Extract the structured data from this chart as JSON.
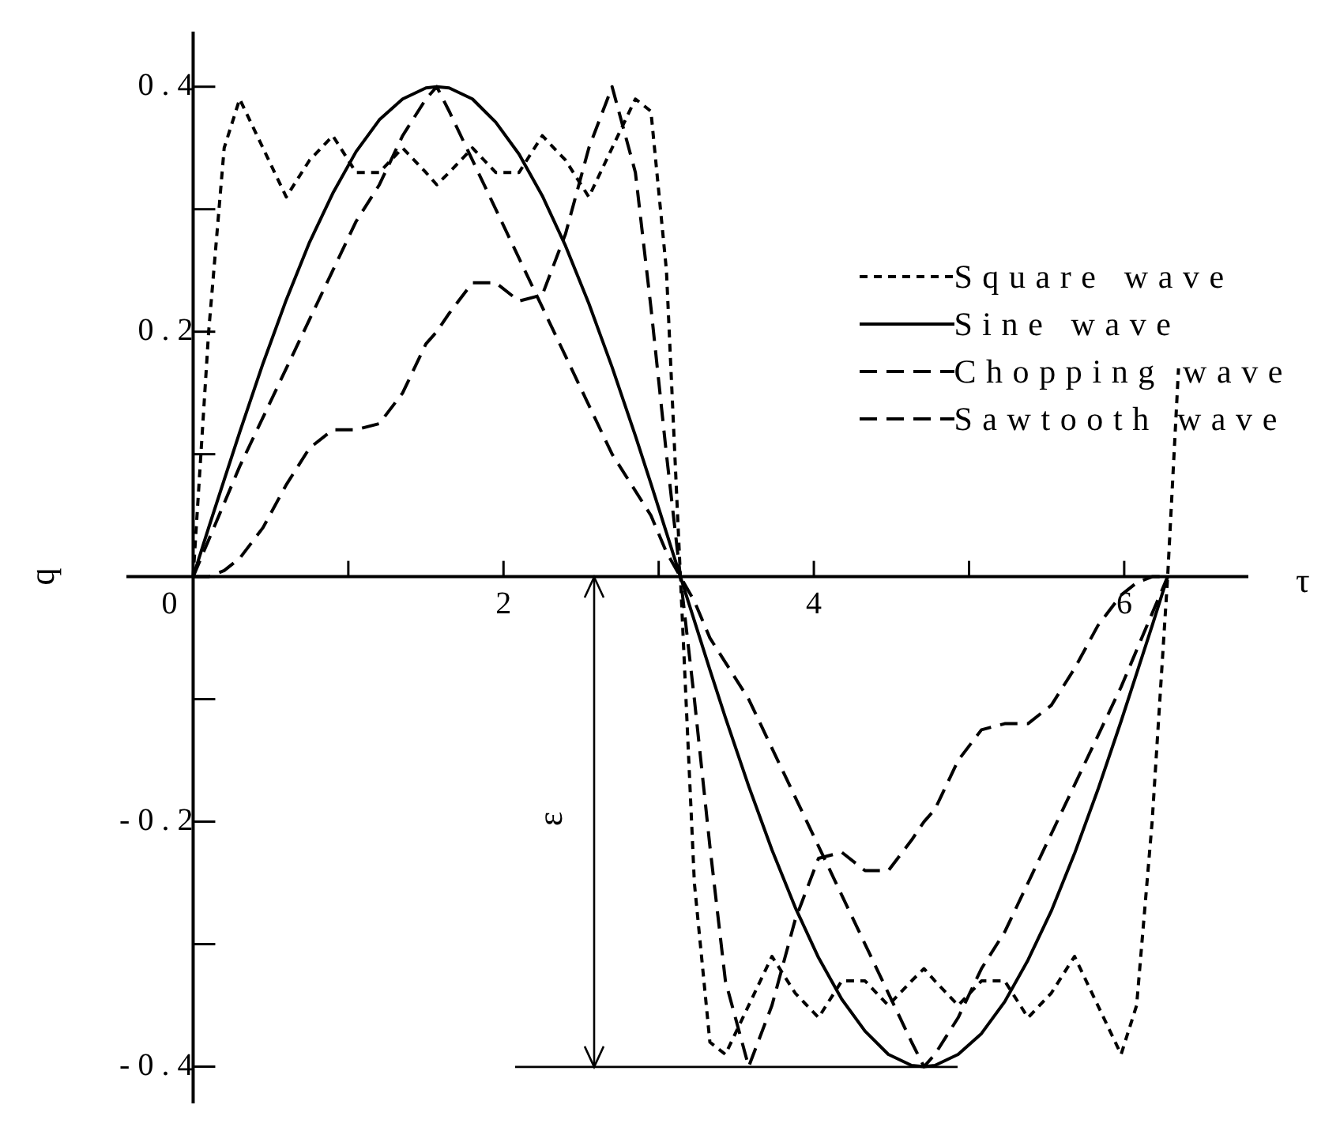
{
  "chart_data": {
    "type": "line",
    "xlabel": "τ",
    "ylabel": "q",
    "xlim": [
      -0.43,
      6.8
    ],
    "ylim": [
      -0.43,
      0.445
    ],
    "xticks": [
      0,
      {
        "value": 1,
        "label": null
      },
      2,
      {
        "value": 3,
        "label": null
      },
      4,
      {
        "value": 5,
        "label": null
      },
      6
    ],
    "yticks": [
      -0.4,
      {
        "value": -0.3,
        "label": null
      },
      -0.2,
      {
        "value": -0.1,
        "label": null
      },
      {
        "value": 0,
        "label": null
      },
      {
        "value": 0.1,
        "label": null
      },
      0.2,
      {
        "value": 0.3,
        "label": null
      },
      0.4
    ],
    "grid": false,
    "legend": "top right",
    "marker": "none",
    "x": [
      0,
      0.1,
      0.2,
      0.3,
      0.45,
      0.6,
      0.75,
      0.9,
      1.05,
      1.2,
      1.35,
      1.5,
      1.57,
      1.65,
      1.8,
      1.95,
      2.1,
      2.25,
      2.4,
      2.55,
      2.7,
      2.85,
      2.95,
      3.05,
      3.14,
      3.23,
      3.33,
      3.43,
      3.58,
      3.73,
      3.88,
      4.03,
      4.18,
      4.33,
      4.48,
      4.63,
      4.71,
      4.78,
      4.93,
      5.08,
      5.23,
      5.38,
      5.53,
      5.68,
      5.83,
      5.98,
      6.08,
      6.18,
      6.28
    ],
    "annotations": [
      "ε"
    ],
    "series": [
      {
        "name": "Square wave",
        "color": "#000000",
        "line_style": "dotted",
        "x": [
          0,
          0.1,
          0.2,
          0.3,
          0.45,
          0.6,
          0.75,
          0.9,
          1.05,
          1.2,
          1.35,
          1.5,
          1.57,
          1.65,
          1.8,
          1.95,
          2.1,
          2.25,
          2.4,
          2.55,
          2.7,
          2.85,
          2.95,
          3.05,
          3.14,
          3.23,
          3.33,
          3.43,
          3.58,
          3.73,
          3.88,
          4.03,
          4.18,
          4.33,
          4.48,
          4.63,
          4.71,
          4.78,
          4.93,
          5.08,
          5.23,
          5.38,
          5.53,
          5.68,
          5.83,
          5.98,
          6.08,
          6.18,
          6.28,
          6.35
        ],
        "values": [
          0,
          0.2,
          0.35,
          0.39,
          0.35,
          0.31,
          0.34,
          0.36,
          0.33,
          0.33,
          0.35,
          0.33,
          0.32,
          0.33,
          0.35,
          0.33,
          0.33,
          0.36,
          0.34,
          0.31,
          0.35,
          0.39,
          0.38,
          0.25,
          0,
          -0.25,
          -0.38,
          -0.39,
          -0.35,
          -0.31,
          -0.34,
          -0.36,
          -0.33,
          -0.33,
          -0.35,
          -0.33,
          -0.32,
          -0.33,
          -0.35,
          -0.33,
          -0.33,
          -0.36,
          -0.34,
          -0.31,
          -0.35,
          -0.39,
          -0.35,
          -0.2,
          0,
          0.17
        ]
      },
      {
        "name": "Sine wave",
        "color": "#000000",
        "line_style": "solid",
        "values": [
          0,
          0.04,
          0.079,
          0.118,
          0.174,
          0.226,
          0.273,
          0.313,
          0.347,
          0.373,
          0.39,
          0.399,
          0.4,
          0.399,
          0.39,
          0.371,
          0.345,
          0.311,
          0.27,
          0.223,
          0.171,
          0.115,
          0.076,
          0.036,
          0,
          -0.036,
          -0.076,
          -0.115,
          -0.171,
          -0.223,
          -0.27,
          -0.311,
          -0.345,
          -0.371,
          -0.39,
          -0.399,
          -0.4,
          -0.399,
          -0.39,
          -0.373,
          -0.347,
          -0.313,
          -0.273,
          -0.226,
          -0.174,
          -0.118,
          -0.079,
          -0.04,
          0
        ]
      },
      {
        "name": "Chopping wave",
        "color": "#000000",
        "line_style": "dashed",
        "values": [
          0,
          0.03,
          0.06,
          0.09,
          0.13,
          0.17,
          0.21,
          0.25,
          0.29,
          0.32,
          0.36,
          0.39,
          0.4,
          0.38,
          0.34,
          0.3,
          0.26,
          0.22,
          0.18,
          0.14,
          0.1,
          0.07,
          0.05,
          0.02,
          0,
          -0.02,
          -0.05,
          -0.07,
          -0.1,
          -0.14,
          -0.18,
          -0.22,
          -0.26,
          -0.3,
          -0.34,
          -0.38,
          -0.4,
          -0.39,
          -0.36,
          -0.32,
          -0.29,
          -0.25,
          -0.21,
          -0.17,
          -0.13,
          -0.09,
          -0.06,
          -0.03,
          0
        ]
      },
      {
        "name": "Sawtooth wave",
        "color": "#000000",
        "line_style": "dashed",
        "values": [
          0,
          0,
          0.005,
          0.015,
          0.04,
          0.075,
          0.105,
          0.12,
          0.12,
          0.125,
          0.15,
          0.19,
          0.2,
          0.215,
          0.24,
          0.24,
          0.225,
          0.23,
          0.28,
          0.35,
          0.4,
          0.33,
          0.22,
          0.1,
          0,
          -0.1,
          -0.22,
          -0.33,
          -0.4,
          -0.35,
          -0.28,
          -0.23,
          -0.225,
          -0.24,
          -0.24,
          -0.215,
          -0.2,
          -0.19,
          -0.15,
          -0.125,
          -0.12,
          -0.12,
          -0.105,
          -0.075,
          -0.04,
          -0.015,
          -0.005,
          0,
          0
        ]
      }
    ]
  }
}
